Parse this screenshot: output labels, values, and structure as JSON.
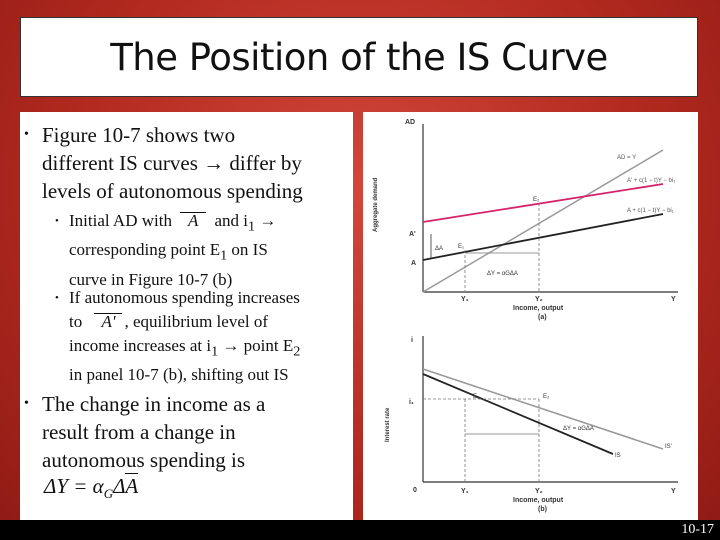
{
  "slide": {
    "title": "The Position of the IS Curve",
    "page_number": "10-17"
  },
  "bullets": {
    "b1": {
      "line1": "Figure 10-7 shows two",
      "line2": "different IS curves → differ by",
      "line3": "levels of autonomous spending"
    },
    "b1a": {
      "line1_pre": "Initial AD with",
      "line1_post": "and i",
      "line1_sub": "1",
      "line1_arrow": "→",
      "line2_pre": "corresponding point E",
      "line2_sub": "1",
      "line2_post": " on IS",
      "line3": "curve in Figure 10-7 (b)"
    },
    "b1b": {
      "line1": "If autonomous spending increases",
      "line2_pre": "to",
      "line2_post": ", equilibrium level of",
      "line3_pre": "income increases at i",
      "line3_sub": "1",
      "line3_mid": " → point E",
      "line3_sub2": "2",
      "line4": "in panel 10-7 (b), shifting out IS"
    },
    "b2": {
      "line1": "The change in income as a",
      "line2": "result from a change in",
      "line3": "autonomous spending is"
    },
    "formula": "ΔY = αGΔA"
  },
  "figure": {
    "panel_a": {
      "y_axis_title": "AD",
      "y_label": "Aggregate demand",
      "ad_eq_y": "AD = Y",
      "line_upper": "A' + c(1 − t)Y − bi₁",
      "line_lower": "A + c(1 − t)Y − bi₁",
      "a_prime": "A'",
      "a": "A",
      "delta_a": "ΔA",
      "e1": "E₁",
      "e2": "E₂",
      "delta_y": "ΔY = αGΔA",
      "y1": "Y₁",
      "y2": "Y₂",
      "y": "Y",
      "x_label": "Income, output",
      "panel": "(a)"
    },
    "panel_b": {
      "y_axis_title": "i",
      "y_label": "Interest rate",
      "i1": "i₁",
      "e1": "E₁",
      "e2": "E₂",
      "delta_y": "ΔY = αGΔA",
      "is_prime": "IS'",
      "is": "IS",
      "origin": "0",
      "y1": "Y₁",
      "y2": "Y₂",
      "y": "Y",
      "x_label": "Income, output",
      "panel": "(b)"
    }
  },
  "colors": {
    "background": "#b32a20",
    "ad_line_upper": "#d6226b",
    "ad_line_lower": "#222222",
    "ad_eq_y": "#999999"
  }
}
